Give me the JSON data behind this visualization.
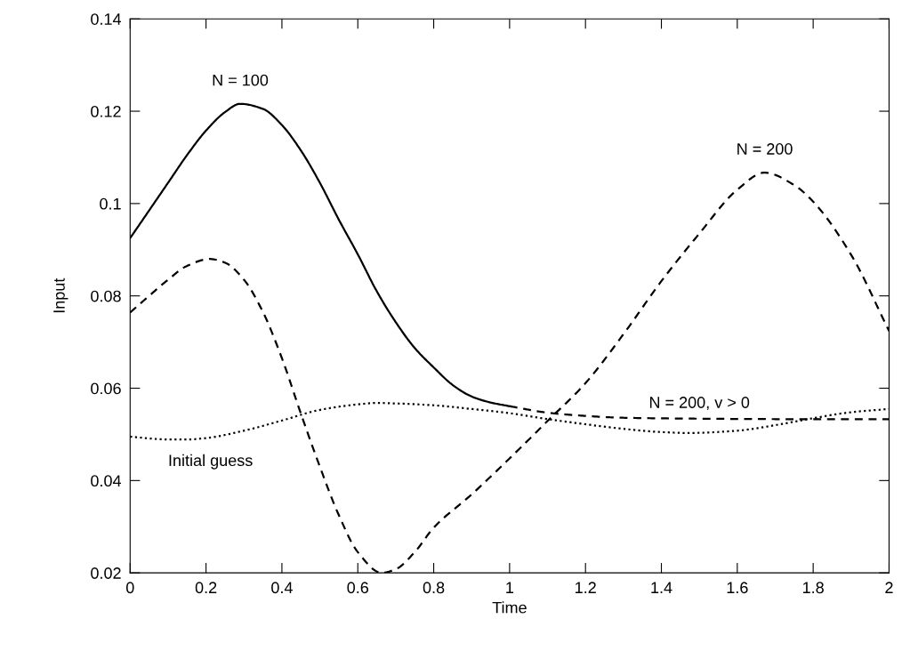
{
  "chart_data": {
    "type": "line",
    "xlabel": "Time",
    "ylabel": "Input",
    "xlim": [
      0,
      2
    ],
    "xticks": [
      0,
      0.2,
      0.4,
      0.6,
      0.8,
      1,
      1.2,
      1.4,
      1.6,
      1.8,
      2
    ],
    "ylim": [
      0.02,
      0.14
    ],
    "yticks": [
      0.02,
      0.04,
      0.06,
      0.08,
      0.1,
      0.12,
      0.14
    ],
    "grid": false,
    "marker": "none",
    "series": [
      {
        "color": "#000000",
        "line_style": "solid",
        "x": [
          0,
          0.05,
          0.1,
          0.15,
          0.2,
          0.25,
          0.29,
          0.35,
          0.4,
          0.45,
          0.5,
          0.55,
          0.6,
          0.65,
          0.7,
          0.75,
          0.8,
          0.85,
          0.9,
          0.95,
          1.0
        ],
        "values": [
          0.0925,
          0.0985,
          0.1045,
          0.1105,
          0.1158,
          0.1198,
          0.1216,
          0.1205,
          0.117,
          0.1115,
          0.1045,
          0.0965,
          0.089,
          0.081,
          0.0743,
          0.0687,
          0.0645,
          0.0607,
          0.0582,
          0.0569,
          0.0561
        ]
      },
      {
        "color": "#000000",
        "line_style": "dashed",
        "x": [
          0,
          0.05,
          0.1,
          0.15,
          0.21,
          0.25,
          0.3,
          0.35,
          0.4,
          0.45,
          0.5,
          0.55,
          0.6,
          0.663,
          0.7,
          0.75,
          0.8,
          0.9,
          1.0,
          1.1,
          1.2,
          1.3,
          1.4,
          1.5,
          1.6,
          1.672,
          1.75,
          1.8,
          1.9,
          2.0
        ],
        "values": [
          0.0764,
          0.08,
          0.0835,
          0.0865,
          0.088,
          0.0872,
          0.0835,
          0.0765,
          0.0665,
          0.0545,
          0.043,
          0.0325,
          0.0245,
          0.02,
          0.0208,
          0.0245,
          0.0298,
          0.037,
          0.0448,
          0.0529,
          0.0611,
          0.0717,
          0.0832,
          0.0935,
          0.103,
          0.1067,
          0.104,
          0.1004,
          0.0889,
          0.0724
        ]
      },
      {
        "color": "#000000",
        "line_style": "dashed",
        "x": [
          1.0,
          1.1,
          1.2,
          1.3,
          1.5,
          1.75,
          2.0
        ],
        "values": [
          0.0561,
          0.0547,
          0.054,
          0.0536,
          0.0534,
          0.0533,
          0.0533
        ]
      },
      {
        "color": "#000000",
        "line_style": "dotted",
        "x": [
          0,
          0.1,
          0.15,
          0.2,
          0.3,
          0.4,
          0.5,
          0.6,
          0.65,
          0.7,
          0.8,
          0.9,
          1.0,
          1.1,
          1.2,
          1.3,
          1.4,
          1.47,
          1.6,
          1.7,
          1.8,
          1.9,
          2.0
        ],
        "values": [
          0.0495,
          0.0489,
          0.0489,
          0.0492,
          0.0508,
          0.053,
          0.0553,
          0.0565,
          0.0568,
          0.0567,
          0.0563,
          0.0555,
          0.0546,
          0.0533,
          0.0522,
          0.0512,
          0.0505,
          0.0503,
          0.0508,
          0.052,
          0.0535,
          0.0548,
          0.0555
        ]
      }
    ],
    "annotations": [
      {
        "text": "N = 100",
        "x": 0.29,
        "y": 0.1216
      },
      {
        "text": "N = 200",
        "x": 1.672,
        "y": 0.1067
      },
      {
        "text": "N = 200, v > 0",
        "x": 1.5,
        "y": 0.0534
      },
      {
        "text": "Initial guess",
        "x": 0.1,
        "y": 0.0489
      }
    ]
  }
}
